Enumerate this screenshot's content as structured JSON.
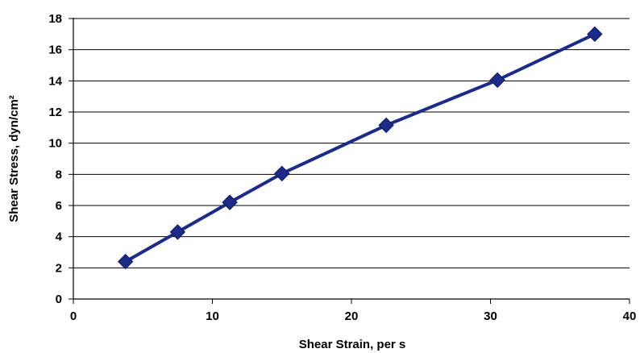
{
  "chart_data": {
    "type": "line",
    "xlabel": "Shear Strain, per s",
    "ylabel": "Shear Stress, dyn/cm²",
    "xlim": [
      0,
      40
    ],
    "ylim": [
      0,
      18
    ],
    "x_ticks": [
      0,
      10,
      20,
      30,
      40
    ],
    "y_ticks": [
      0,
      2,
      4,
      6,
      8,
      10,
      12,
      14,
      16,
      18
    ],
    "grid": "horizontal",
    "legend": "none",
    "series": [
      {
        "x": [
          3.75,
          7.5,
          11.25,
          15.0,
          22.5,
          30.5,
          37.5
        ],
        "values": [
          2.4,
          4.3,
          6.2,
          8.05,
          11.15,
          14.05,
          17.0
        ],
        "marker": "diamond",
        "color": "#1c2a8a"
      }
    ]
  }
}
